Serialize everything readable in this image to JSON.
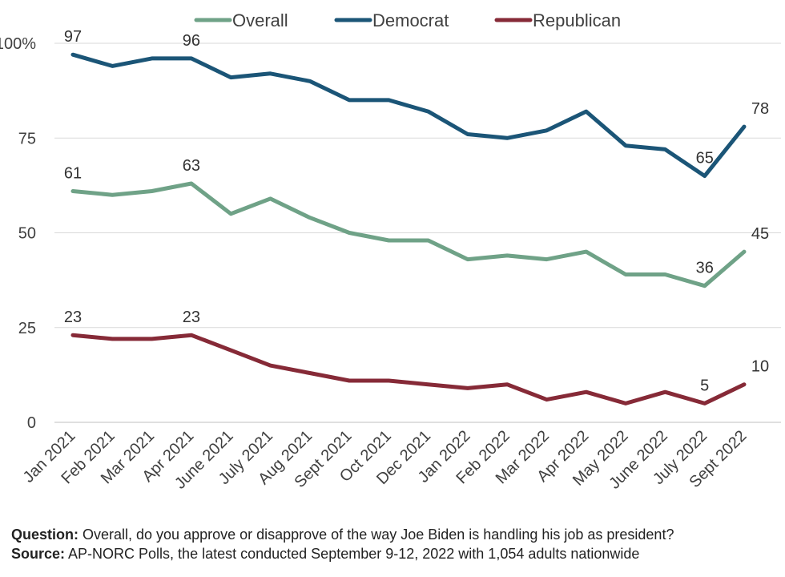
{
  "chart_data": {
    "type": "line",
    "categories": [
      "Jan 2021",
      "Feb 2021",
      "Mar 2021",
      "Apr 2021",
      "June 2021",
      "July 2021",
      "Aug 2021",
      "Sept 2021",
      "Oct 2021",
      "Dec 2021",
      "Jan 2022",
      "Feb 2022",
      "Mar 2022",
      "Apr 2022",
      "May 2022",
      "June 2022",
      "July 2022",
      "Sept 2022"
    ],
    "series": [
      {
        "name": "Overall",
        "color": "#6fa287",
        "values": [
          61,
          60,
          61,
          63,
          55,
          59,
          54,
          50,
          48,
          48,
          43,
          44,
          43,
          45,
          39,
          39,
          36,
          45
        ],
        "labels": {
          "0": "61",
          "3": "63",
          "16": "36",
          "17": "45"
        }
      },
      {
        "name": "Democrat",
        "color": "#1b5577",
        "values": [
          97,
          94,
          96,
          96,
          91,
          92,
          90,
          85,
          85,
          82,
          76,
          75,
          77,
          82,
          73,
          72,
          65,
          78
        ],
        "labels": {
          "0": "97",
          "3": "96",
          "16": "65",
          "17": "78"
        }
      },
      {
        "name": "Republican",
        "color": "#862a37",
        "values": [
          23,
          22,
          22,
          23,
          19,
          15,
          13,
          11,
          11,
          10,
          9,
          10,
          6,
          8,
          5,
          8,
          5,
          10
        ],
        "labels": {
          "0": "23",
          "3": "23",
          "16": "5",
          "17": "10"
        }
      }
    ],
    "y_ticks": [
      "0",
      "25",
      "50",
      "75",
      "100%"
    ],
    "ylim": [
      0,
      100
    ],
    "grid": "horizontal",
    "legend_position": "top"
  },
  "notes": {
    "question_label": "Question:",
    "question_text": " Overall, do you approve or disapprove of the way Joe Biden is handling his job as president?",
    "source_label": "Source:",
    "source_text": " AP-NORC Polls, the latest conducted September 9-12, 2022 with 1,054 adults nationwide"
  }
}
